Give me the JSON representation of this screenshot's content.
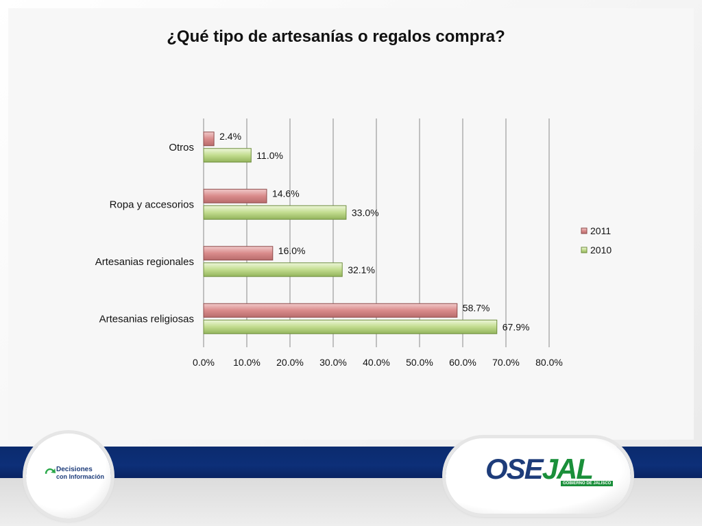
{
  "slide": {
    "title": "¿Qué tipo de artesanías o regalos compra?",
    "left_logo": {
      "line1": "Decisiones",
      "line2": "con Información"
    },
    "right_logo": {
      "word_part1": "OSE",
      "word_part2": "JAL",
      "subtitle": "GOBIERNO DE JALISCO"
    },
    "colors": {
      "band": "#0d2f78",
      "logo_blue": "#1d3c7a",
      "logo_green": "#1a8f3a"
    }
  },
  "chart_data": {
    "type": "bar",
    "orientation": "horizontal",
    "title": "¿Qué tipo de artesanías o regalos compra?",
    "categories": [
      "Otros",
      "Ropa y accesorios",
      "Artesanias regionales",
      "Artesanias religiosas"
    ],
    "series": [
      {
        "name": "2011",
        "values": [
          2.4,
          14.6,
          16.0,
          58.7
        ],
        "labels": [
          "2.4%",
          "14.6%",
          "16.0%",
          "58.7%"
        ],
        "color": "#d98b8b"
      },
      {
        "name": "2010",
        "values": [
          11.0,
          33.0,
          32.1,
          67.9
        ],
        "labels": [
          "11.0%",
          "33.0%",
          "32.1%",
          "67.9%"
        ],
        "color": "#c2dc8e"
      }
    ],
    "xlim": [
      0,
      80
    ],
    "xticks": [
      "0.0%",
      "10.0%",
      "20.0%",
      "30.0%",
      "40.0%",
      "50.0%",
      "60.0%",
      "70.0%",
      "80.0%"
    ],
    "grid": "vertical",
    "legend_position": "right"
  }
}
